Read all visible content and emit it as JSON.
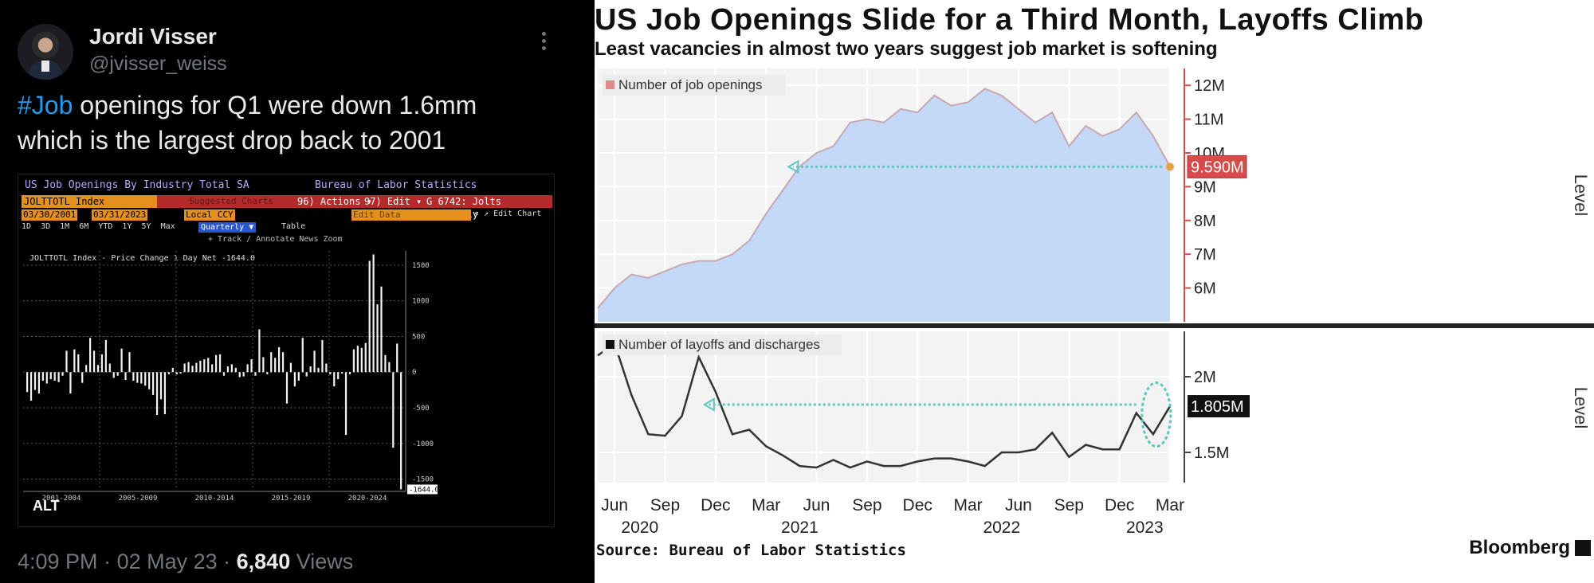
{
  "tweet": {
    "author_name": "Jordi Visser",
    "author_handle": "@jvisser_weiss",
    "hashtag": "#Job",
    "text_line1_rest": " openings for Q1 were down 1.6mm",
    "text_line2": "which is the largest drop back to 2001",
    "time": "4:09 PM",
    "date": "02 May 23",
    "views_count": "6,840",
    "views_label": "Views",
    "alt_badge": "ALT",
    "colors": {
      "hashtag": "#1d9bf0",
      "text": "#e7e9ea",
      "muted": "#71767b"
    }
  },
  "terminal": {
    "title_left": "US Job Openings By Industry Total SA",
    "title_right": "Bureau of Labor Statistics",
    "ticker": "JOLTTOTL Index",
    "suggested": "Suggested Charts",
    "actions": "96) Actions ▾",
    "edit": "97) Edit ▾",
    "ref": "G 6742: Jolts Quarterly",
    "start_date": "03/30/2001",
    "end_date": "03/31/2023",
    "currency": "Local CCY",
    "edit_data": "Edit Data",
    "periods": "1D  3D  1M  6M  YTD  1Y  5Y  Max",
    "frequency": "Quarterly ▼",
    "table": "Table",
    "edit_chart": "« ↗ Edit Chart",
    "tools": "+ Track   ∕ Annotate   News   Zoom",
    "legend": "JOLTTOTL Index - Price Change 1 Day Net  -1644.0",
    "last_value": "-1644.0",
    "chart_data": {
      "type": "bar",
      "title": "JOLTTOTL Index - Price Change 1 Day Net",
      "ylim": [
        -1650,
        1700
      ],
      "yticks": [
        "1500",
        "1000",
        "500",
        "0",
        "-500",
        "-1000",
        "-1500"
      ],
      "yticks_values": [
        1500,
        1000,
        500,
        0,
        -500,
        -1000,
        -1500
      ],
      "xlabels": [
        "2001-2004",
        "2005-2009",
        "2010-2014",
        "2015-2019",
        "2020-2024"
      ],
      "values": [
        -280,
        -400,
        -250,
        -300,
        -120,
        -160,
        -100,
        -120,
        -140,
        -50,
        300,
        -300,
        320,
        250,
        -150,
        100,
        480,
        300,
        100,
        250,
        450,
        120,
        -80,
        -50,
        330,
        -110,
        280,
        -120,
        -150,
        -160,
        -190,
        -240,
        -320,
        -600,
        -380,
        -590,
        -30,
        60,
        -30,
        -20,
        120,
        140,
        90,
        130,
        160,
        180,
        200,
        110,
        240,
        250,
        -50,
        80,
        110,
        60,
        -70,
        -60,
        110,
        180,
        -50,
        600,
        210,
        -30,
        280,
        200,
        350,
        280,
        -440,
        130,
        -200,
        -120,
        480,
        -60,
        80,
        300,
        60,
        450,
        120,
        -30,
        -200,
        -100,
        -20,
        -880,
        -30,
        320,
        370,
        340,
        410,
        1560,
        1650,
        950,
        1200,
        240,
        140,
        -1060,
        400,
        -1644
      ]
    }
  },
  "bloomberg": {
    "title": "US Job Openings Slide for a Third Month, Layoffs Climb",
    "subtitle": "Least vacancies in almost two years suggest job market is softening",
    "source": "Source: Bureau of Labor Statistics",
    "brand": "Bloomberg",
    "colors": {
      "openings_fill": "#c4d8f8",
      "openings_line": "#c8a8b0",
      "legend_openings": "#e08a8a",
      "arrow": "#5dc8bb",
      "last_dot": "#e3a33a",
      "openings_label_bg": "#d94a4a",
      "axis_red": "#d94a4a",
      "layoffs_line": "#333333"
    },
    "chart_data": [
      {
        "type": "area",
        "legend": "Number of job openings",
        "axis_label": "Level",
        "ylim": [
          5.0,
          12.5
        ],
        "yticks": [
          "12M",
          "11M",
          "10M",
          "9M",
          "8M",
          "7M",
          "6M"
        ],
        "yticks_values": [
          12,
          11,
          10,
          9,
          8,
          7,
          6
        ],
        "last_value_label": "9.590M",
        "x": [
          "2020-05",
          "2020-06",
          "2020-07",
          "2020-08",
          "2020-09",
          "2020-10",
          "2020-11",
          "2020-12",
          "2021-01",
          "2021-02",
          "2021-03",
          "2021-04",
          "2021-05",
          "2021-06",
          "2021-07",
          "2021-08",
          "2021-09",
          "2021-10",
          "2021-11",
          "2021-12",
          "2022-01",
          "2022-02",
          "2022-03",
          "2022-04",
          "2022-05",
          "2022-06",
          "2022-07",
          "2022-08",
          "2022-09",
          "2022-10",
          "2022-11",
          "2022-12",
          "2023-01",
          "2023-02",
          "2023-03"
        ],
        "values": [
          5.4,
          6.0,
          6.4,
          6.3,
          6.5,
          6.7,
          6.8,
          6.8,
          7.0,
          7.4,
          8.2,
          8.9,
          9.6,
          10.0,
          10.2,
          10.9,
          11.0,
          10.9,
          11.3,
          11.2,
          11.7,
          11.4,
          11.5,
          11.9,
          11.7,
          11.3,
          10.9,
          11.2,
          10.2,
          10.8,
          10.5,
          10.7,
          11.2,
          10.5,
          9.59
        ]
      },
      {
        "type": "line",
        "legend": "Number of layoffs and discharges",
        "axis_label": "Level",
        "ylim": [
          1.3,
          2.3
        ],
        "yticks": [
          "2M",
          "1.5M"
        ],
        "yticks_values": [
          2.0,
          1.5
        ],
        "last_value_label": "1.805M",
        "x": [
          "2020-05",
          "2020-06",
          "2020-07",
          "2020-08",
          "2020-09",
          "2020-10",
          "2020-11",
          "2020-12",
          "2021-01",
          "2021-02",
          "2021-03",
          "2021-04",
          "2021-05",
          "2021-06",
          "2021-07",
          "2021-08",
          "2021-09",
          "2021-10",
          "2021-11",
          "2021-12",
          "2022-01",
          "2022-02",
          "2022-03",
          "2022-04",
          "2022-05",
          "2022-06",
          "2022-07",
          "2022-08",
          "2022-09",
          "2022-10",
          "2022-11",
          "2022-12",
          "2023-01",
          "2023-02",
          "2023-03"
        ],
        "values": [
          2.14,
          2.22,
          1.88,
          1.62,
          1.61,
          1.74,
          2.13,
          1.9,
          1.62,
          1.65,
          1.54,
          1.48,
          1.41,
          1.4,
          1.45,
          1.4,
          1.44,
          1.41,
          1.41,
          1.44,
          1.46,
          1.46,
          1.44,
          1.41,
          1.5,
          1.5,
          1.52,
          1.63,
          1.47,
          1.55,
          1.52,
          1.52,
          1.76,
          1.62,
          1.805
        ]
      }
    ],
    "x_ticks": [
      "Jun",
      "Sep",
      "Dec",
      "Mar",
      "Jun",
      "Sep",
      "Dec",
      "Mar",
      "Jun",
      "Sep",
      "Dec",
      "Mar"
    ],
    "x_years": [
      "2020",
      "2021",
      "2022",
      "2023"
    ]
  }
}
